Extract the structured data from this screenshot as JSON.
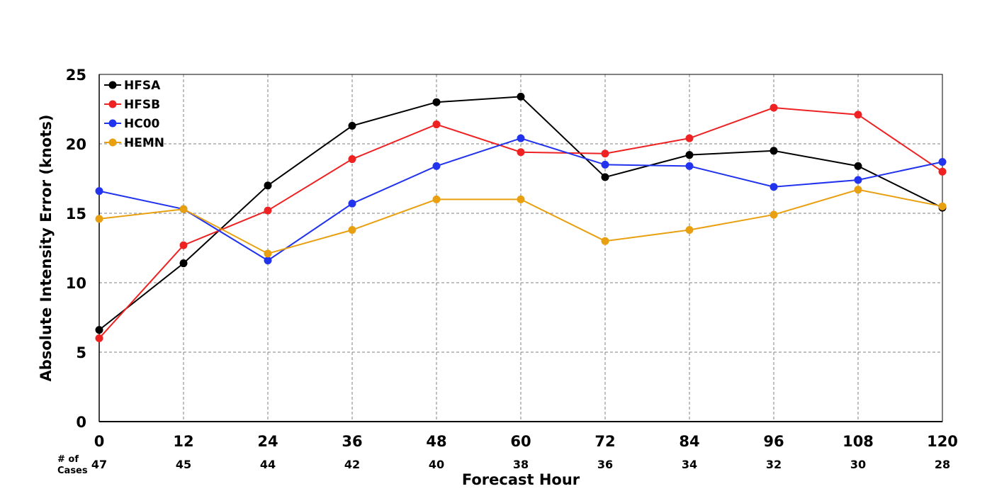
{
  "chart_data": {
    "type": "line",
    "title": "",
    "xlabel": "Forecast Hour",
    "ylabel": "Absolute Intensity Error (knots)",
    "x": [
      0,
      12,
      24,
      36,
      48,
      60,
      72,
      84,
      96,
      108,
      120
    ],
    "x_tick_labels": [
      "0",
      "12",
      "24",
      "36",
      "48",
      "60",
      "72",
      "84",
      "96",
      "108",
      "120"
    ],
    "xlim": [
      0,
      120
    ],
    "ylim": [
      0,
      25
    ],
    "y_ticks": [
      0,
      5,
      10,
      15,
      20,
      25
    ],
    "y_tick_labels": [
      "0",
      "5",
      "10",
      "15",
      "20",
      "25"
    ],
    "grid": true,
    "legend_position": "top-left",
    "cases_title_line1": "# of",
    "cases_title_line2": "Cases",
    "cases": [
      "47",
      "45",
      "44",
      "42",
      "40",
      "38",
      "36",
      "34",
      "32",
      "30",
      "28"
    ],
    "series": [
      {
        "name": "HFSA",
        "color": "#000000",
        "values": [
          6.6,
          11.4,
          17.0,
          21.3,
          23.0,
          23.4,
          17.6,
          19.2,
          19.5,
          18.4,
          15.4
        ]
      },
      {
        "name": "HFSB",
        "color": "#ee2222",
        "values": [
          6.0,
          12.7,
          15.2,
          18.9,
          21.4,
          19.4,
          19.3,
          20.4,
          22.6,
          22.1,
          18.0
        ]
      },
      {
        "name": "HC00",
        "color": "#2233ee",
        "values": [
          16.6,
          15.3,
          11.6,
          15.7,
          18.4,
          20.4,
          18.5,
          18.4,
          16.9,
          17.4,
          18.7
        ]
      },
      {
        "name": "HEMN",
        "color": "#e8a010",
        "values": [
          14.6,
          15.3,
          12.1,
          13.8,
          16.0,
          16.0,
          13.0,
          13.8,
          14.9,
          16.7,
          15.5
        ]
      }
    ]
  }
}
